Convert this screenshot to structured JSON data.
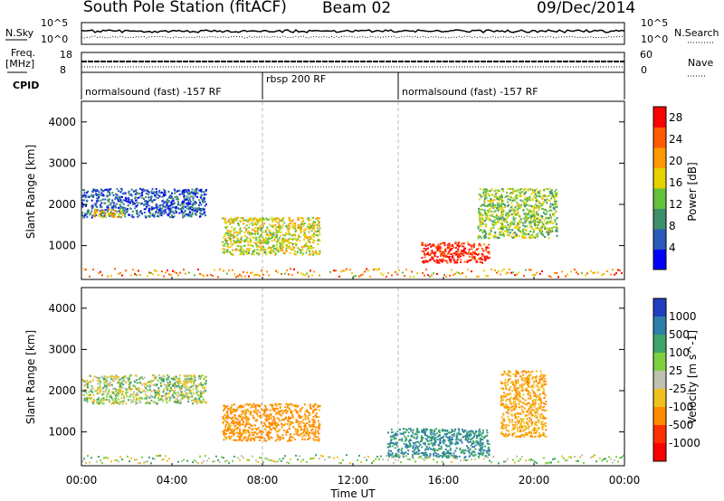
{
  "header": {
    "station": "South Pole Station (fitACF)",
    "beam": "Beam 02",
    "date": "09/Dec/2014"
  },
  "top_panels": {
    "nsky_label": "N.Sky",
    "nsky_ticks": [
      "10^5",
      "10^0"
    ],
    "nsearch_label": "N.Search",
    "nsearch_ticks": [
      "10^5",
      "10^0"
    ],
    "freq_label_1": "Freq.",
    "freq_label_2": "[MHz]",
    "freq_ticks": [
      "18",
      "8"
    ],
    "nave_label": "Nave",
    "nave_ticks": [
      "60",
      "0"
    ],
    "cpid_label": "CPID",
    "cpid_segments": [
      {
        "label": "normalsound (fast) -157 RF",
        "start": "00:00",
        "end": "08:00"
      },
      {
        "label": "rbsp 200 RF",
        "start": "08:00",
        "end": "14:00"
      },
      {
        "label": "normalsound (fast) -157 RF",
        "start": "14:00",
        "end": "24:00"
      }
    ]
  },
  "chart_data": [
    {
      "type": "heatmap",
      "title": "",
      "xlabel": "Time UT",
      "ylabel": "Slant Range [km]",
      "x_ticks": [
        "00:00",
        "04:00",
        "08:00",
        "12:00",
        "16:00",
        "20:00",
        "00:00"
      ],
      "y_ticks": [
        "1000",
        "2000",
        "3000",
        "4000"
      ],
      "xlim": [
        0,
        24
      ],
      "ylim": [
        180,
        4500
      ],
      "colorbar": {
        "label": "Power [dB]",
        "ticks": [
          "28",
          "24",
          "20",
          "16",
          "12",
          "8",
          "4"
        ],
        "range": [
          0,
          30
        ],
        "colors": [
          "#0000ff",
          "#2a5ab8",
          "#3e8f6b",
          "#63c23a",
          "#e6d200",
          "#ff9a00",
          "#ff5a00",
          "#ff0000"
        ]
      },
      "features": [
        {
          "time": [
            0.0,
            5.5
          ],
          "range_km": [
            1700,
            2400
          ],
          "value": 6
        },
        {
          "time": [
            0.5,
            1.8
          ],
          "range_km": [
            1700,
            1900
          ],
          "value": 18
        },
        {
          "time": [
            6.2,
            10.5
          ],
          "range_km": [
            800,
            1700
          ],
          "value": 16
        },
        {
          "time": [
            15.0,
            18.0
          ],
          "range_km": [
            600,
            1100
          ],
          "value": 27
        },
        {
          "time": [
            17.5,
            21.0
          ],
          "range_km": [
            1200,
            2400
          ],
          "value": 14
        }
      ]
    },
    {
      "type": "heatmap",
      "title": "",
      "xlabel": "Time UT",
      "ylabel": "Slant Range [km]",
      "x_ticks": [
        "00:00",
        "04:00",
        "08:00",
        "12:00",
        "16:00",
        "20:00",
        "00:00"
      ],
      "y_ticks": [
        "1000",
        "2000",
        "3000",
        "4000"
      ],
      "xlim": [
        0,
        24
      ],
      "ylim": [
        180,
        4500
      ],
      "colorbar": {
        "label": "Velocity [m s^-1]",
        "ticks": [
          "1000",
          "500",
          "100",
          "25",
          "-25",
          "-100",
          "-500",
          "-1000"
        ],
        "colors": [
          "#1f3fbf",
          "#2e7faa",
          "#3fa56a",
          "#7fd040",
          "#c0c0b0",
          "#f0c020",
          "#ff8c00",
          "#ff3000",
          "#ff0000"
        ]
      },
      "features": [
        {
          "time": [
            0.0,
            5.5
          ],
          "range_km": [
            1700,
            2400
          ],
          "value": 0
        },
        {
          "time": [
            6.2,
            10.5
          ],
          "range_km": [
            800,
            1700
          ],
          "value": -400
        },
        {
          "time": [
            13.5,
            18.0
          ],
          "range_km": [
            400,
            1100
          ],
          "value": 300
        },
        {
          "time": [
            18.5,
            20.5
          ],
          "range_km": [
            900,
            2500
          ],
          "value": -300
        }
      ]
    }
  ]
}
